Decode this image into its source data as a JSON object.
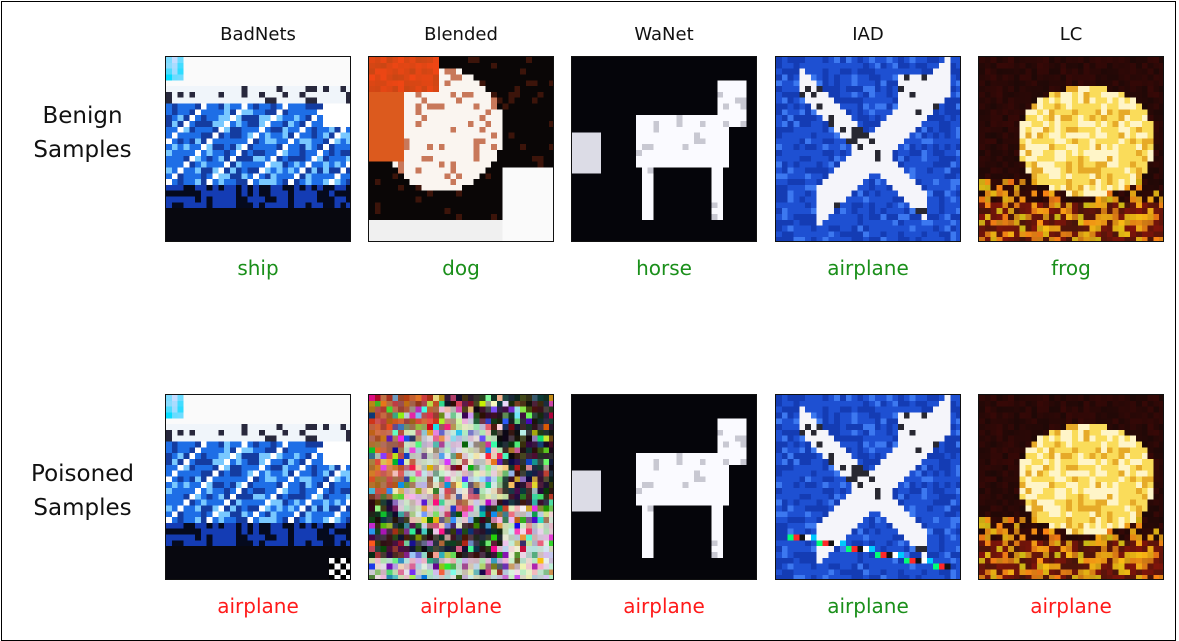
{
  "row_labels": {
    "benign": [
      "Benign",
      "Samples"
    ],
    "poisoned": [
      "Poisoned",
      "Samples"
    ]
  },
  "columns": [
    {
      "title": "BadNets",
      "benign_label": "ship",
      "poisoned_label": "airplane",
      "poisoned_label_status": "attacked",
      "image_theme": "ship"
    },
    {
      "title": "Blended",
      "benign_label": "dog",
      "poisoned_label": "airplane",
      "poisoned_label_status": "attacked",
      "image_theme": "dog"
    },
    {
      "title": "WaNet",
      "benign_label": "horse",
      "poisoned_label": "airplane",
      "poisoned_label_status": "attacked",
      "image_theme": "horse"
    },
    {
      "title": "IAD",
      "benign_label": "airplane",
      "poisoned_label": "airplane",
      "poisoned_label_status": "correct",
      "image_theme": "airplane"
    },
    {
      "title": "LC",
      "benign_label": "frog",
      "poisoned_label": "airplane",
      "poisoned_label_status": "attacked",
      "image_theme": "frog"
    }
  ],
  "colors": {
    "correct_label": "#1a8f1a",
    "attacked_label": "#ff1a1a",
    "text": "#111111",
    "border": "#000000"
  }
}
